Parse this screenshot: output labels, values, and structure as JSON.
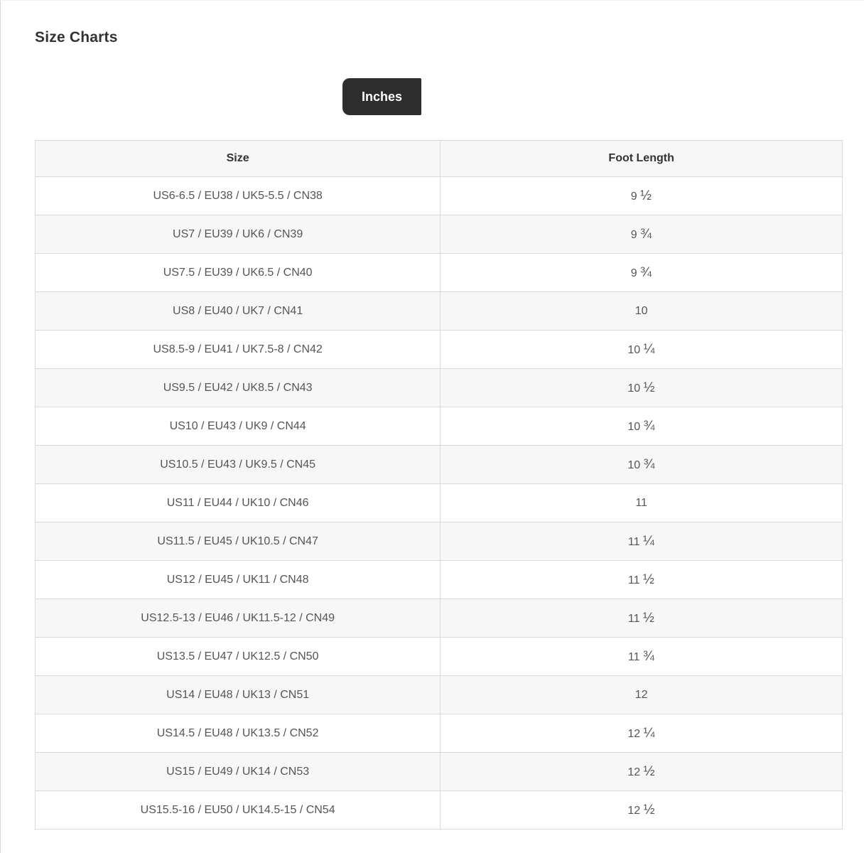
{
  "page": {
    "title": "Size Charts"
  },
  "unit_tab": {
    "label": "Inches"
  },
  "table": {
    "columns": [
      "Size",
      "Foot Length"
    ],
    "rows": [
      {
        "size": "US6-6.5 / EU38 / UK5-5.5 / CN38",
        "foot_length": "9 ½"
      },
      {
        "size": "US7 / EU39 / UK6 / CN39",
        "foot_length": "9 ¾"
      },
      {
        "size": "US7.5 / EU39 / UK6.5 / CN40",
        "foot_length": "9 ¾"
      },
      {
        "size": "US8 / EU40 / UK7 / CN41",
        "foot_length": "10"
      },
      {
        "size": "US8.5-9 / EU41 / UK7.5-8 / CN42",
        "foot_length": "10 ¼"
      },
      {
        "size": "US9.5 / EU42 / UK8.5 / CN43",
        "foot_length": "10 ½"
      },
      {
        "size": "US10 / EU43 / UK9 / CN44",
        "foot_length": "10 ¾"
      },
      {
        "size": "US10.5 / EU43 / UK9.5 / CN45",
        "foot_length": "10 ¾"
      },
      {
        "size": "US11 / EU44 / UK10 / CN46",
        "foot_length": "11"
      },
      {
        "size": "US11.5 / EU45 / UK10.5 / CN47",
        "foot_length": "11 ¼"
      },
      {
        "size": "US12 / EU45 / UK11 / CN48",
        "foot_length": "11 ½"
      },
      {
        "size": "US12.5-13 / EU46 / UK11.5-12 / CN49",
        "foot_length": "11 ½"
      },
      {
        "size": "US13.5 / EU47 / UK12.5 / CN50",
        "foot_length": "11 ¾"
      },
      {
        "size": "US14 / EU48 / UK13 / CN51",
        "foot_length": "12"
      },
      {
        "size": "US14.5 / EU48 / UK13.5 / CN52",
        "foot_length": "12 ¼"
      },
      {
        "size": "US15 / EU49 / UK14 / CN53",
        "foot_length": "12 ½"
      },
      {
        "size": "US15.5-16 / EU50 / UK14.5-15 / CN54",
        "foot_length": "12 ½"
      }
    ]
  },
  "colors": {
    "tab_background": "#2d2d2d",
    "tab_text": "#ffffff",
    "stripe_background": "#f7f7f7",
    "table_border": "#d9d9d9",
    "heading_text": "#333333",
    "cell_text": "#555557"
  }
}
